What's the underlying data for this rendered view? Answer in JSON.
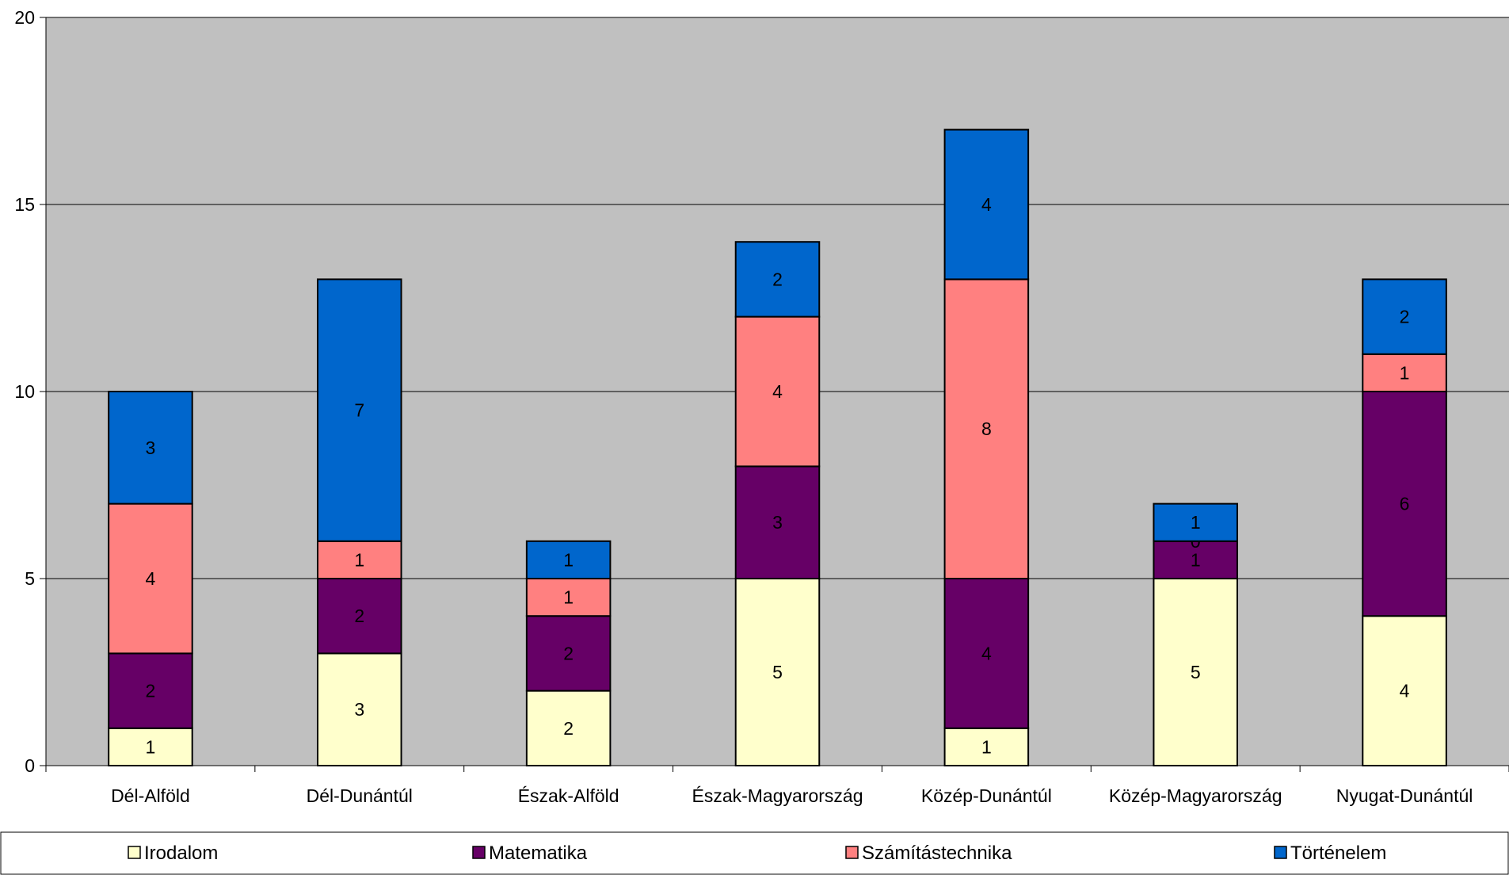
{
  "chart_data": {
    "type": "bar",
    "stacked": true,
    "title": "",
    "xlabel": "",
    "ylabel": "",
    "ylim": [
      0,
      20
    ],
    "yticks": [
      0,
      5,
      10,
      15,
      20
    ],
    "grid": true,
    "legend_position": "bottom",
    "categories": [
      "Dél-Alföld",
      "Dél-Dunántúl",
      "Észak-Alföld",
      "Észak-Magyarország",
      "Közép-Dunántúl",
      "Közép-Magyarország",
      "Nyugat-Dunántúl"
    ],
    "series": [
      {
        "name": "Irodalom",
        "color": "#ffffcc",
        "values": [
          1,
          3,
          2,
          5,
          1,
          5,
          4
        ],
        "label_color": "#000000"
      },
      {
        "name": "Matematika",
        "color": "#660066",
        "values": [
          2,
          2,
          2,
          3,
          4,
          1,
          6
        ],
        "label_color": "#ffffff"
      },
      {
        "name": "Számítástechnika",
        "color": "#ff8080",
        "values": [
          4,
          1,
          1,
          4,
          8,
          0,
          1
        ],
        "label_color": "#000000"
      },
      {
        "name": "Történelem",
        "color": "#0066cc",
        "values": [
          3,
          7,
          1,
          2,
          4,
          1,
          2
        ],
        "label_color": "#000000"
      }
    ],
    "plot_background": "#c0c0c0"
  }
}
